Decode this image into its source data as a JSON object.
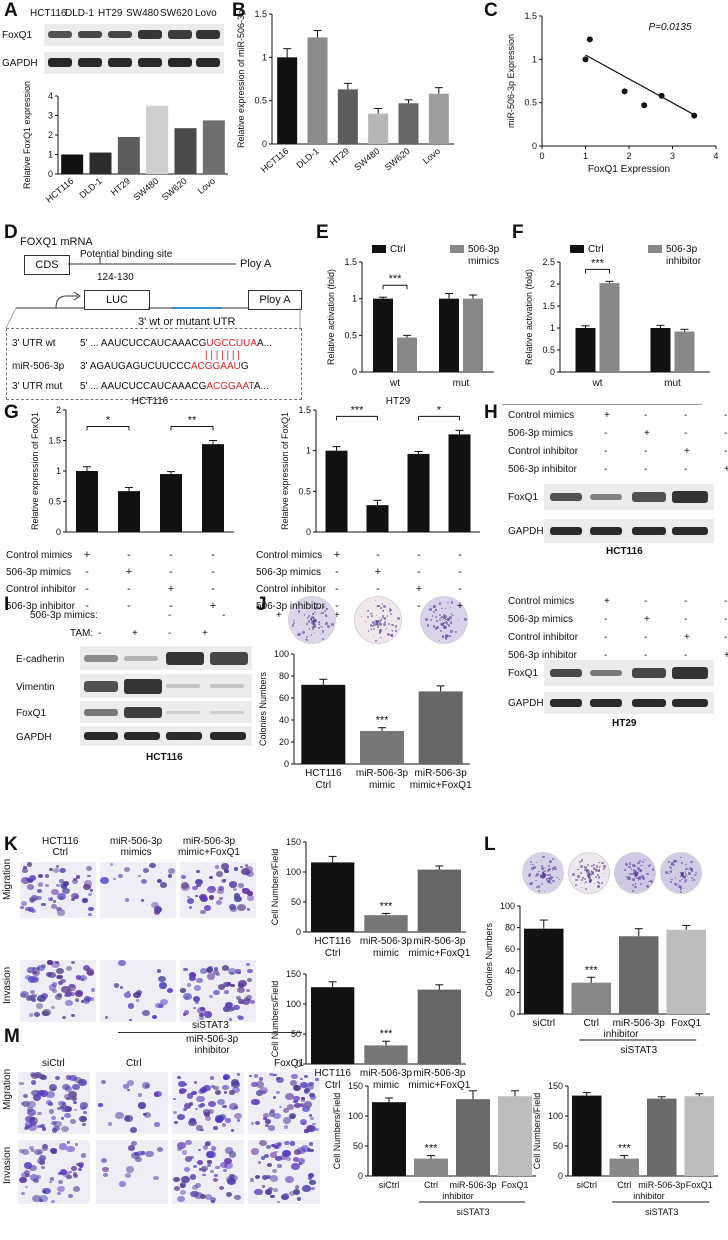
{
  "cell_lines": [
    "HCT116",
    "DLD-1",
    "HT29",
    "SW480",
    "SW620",
    "Lovo"
  ],
  "proteins": {
    "foxq1": "FoxQ1",
    "gapdh": "GAPDH",
    "ecad": "E-cadherin",
    "vim": "Vimentin"
  },
  "panel_letters": [
    "A",
    "B",
    "C",
    "D",
    "E",
    "F",
    "G",
    "H",
    "I",
    "J",
    "K",
    "L",
    "M"
  ],
  "common": {
    "ctrl": "Ctrl",
    "hct116_ctrl_1": "HCT116",
    "hct116_ctrl_2": "Ctrl",
    "mimic_1": "miR-506-3p",
    "mimic_2": "mimic",
    "mimicfox_1": "miR-506-3p",
    "mimicfox_2": "mimic+FoxQ1",
    "sictrl": "siCtrl",
    "inh_1": "miR-506-3p",
    "inh_2": "inhibitor",
    "foxq1": "FoxQ1",
    "sistat3": "siSTAT3",
    "migration": "Migration",
    "invasion": "Invasion",
    "sig3": "***",
    "hct116": "HCT116",
    "ht29": "HT29"
  },
  "treat_labels": [
    "Control mimics",
    "506-3p mimics",
    "Control inhibitor",
    "506-3p inhibitor"
  ],
  "treat_signs": [
    [
      "+",
      "-",
      "-",
      "-"
    ],
    [
      "-",
      "+",
      "-",
      "-"
    ],
    [
      "-",
      "-",
      "+",
      "-"
    ],
    [
      "-",
      "-",
      "-",
      "+"
    ]
  ],
  "panelD": {
    "title": "FOXQ1 mRNA",
    "cds": "CDS",
    "site": "Potential binding site",
    "pos": "124-130",
    "polyA1": "Ploy A",
    "luc": "LUC",
    "polyA2": "Ploy A",
    "utr": "3' wt or mutant UTR",
    "rows": [
      {
        "label": "3' UTR wt",
        "seq_pre": "5' ... AAUCUCCAUCAAACG",
        "seq_red": "UGCCUUA",
        "seq_post": "A..."
      },
      {
        "label": "miR-506-3p",
        "seq_pre": "3'    AGAUGAGUCUUCCC",
        "seq_red": "ACGGAAU",
        "seq_post": "G"
      },
      {
        "label": "3' UTR mut",
        "seq_pre": "5' ... AAUCUCCAUCAAACG",
        "seq_red": "ACGGAAT",
        "seq_post": "A..."
      }
    ],
    "pairs": "| | | | | | |"
  },
  "panelI": {
    "row1": "506-3p mimics:",
    "row2": "TAM:",
    "signs1": [
      "-",
      "-",
      "+",
      "+"
    ],
    "signs2": [
      "-",
      "+",
      "-",
      "+"
    ],
    "cell": "HCT116"
  },
  "panelK": {
    "cols": [
      [
        "HCT116",
        "Ctrl"
      ],
      [
        "miR-506-3p",
        "mimics"
      ],
      [
        "miR-506-3p",
        "mimic+FoxQ1"
      ]
    ]
  },
  "panelM": {
    "cols": [
      "siCtrl",
      "Ctrl",
      "FoxQ1"
    ],
    "inh_1": "miR-506-3p",
    "inh_2": "inhibitor",
    "group": "siSTAT3"
  },
  "chart_data": [
    {
      "id": "A",
      "type": "bar",
      "categories": [
        "HCT116",
        "DLD-1",
        "HT29",
        "SW480",
        "SW620",
        "Lovo"
      ],
      "values": [
        1.0,
        1.1,
        1.9,
        3.5,
        2.35,
        2.75
      ],
      "ylabel": "Relative FoxQ1 expression",
      "ylim": [
        0,
        4
      ],
      "yticks": [
        0,
        1,
        2,
        3,
        4
      ],
      "colors": [
        "#111111",
        "#2c2c2c",
        "#5d5d5d",
        "#cfcfcf",
        "#4a4a4a",
        "#6f6f6f"
      ]
    },
    {
      "id": "B",
      "type": "bar",
      "categories": [
        "HCT116",
        "DLD-1",
        "HT29",
        "SW480",
        "SW620",
        "Lovo"
      ],
      "values": [
        1.0,
        1.23,
        0.63,
        0.35,
        0.47,
        0.58
      ],
      "errors": [
        0.1,
        0.08,
        0.07,
        0.06,
        0.04,
        0.07
      ],
      "ylabel": "Relative expression of miR-506-3p",
      "ylim": [
        0,
        1.5
      ],
      "yticks": [
        0,
        0.5,
        1.0,
        1.5
      ],
      "colors": [
        "#111111",
        "#8b8b8b",
        "#5d5d5d",
        "#b6b6b6",
        "#666666",
        "#9e9e9e"
      ]
    },
    {
      "id": "C",
      "type": "scatter",
      "x": [
        1.0,
        1.1,
        1.9,
        2.35,
        2.75,
        3.5
      ],
      "y": [
        1.0,
        1.23,
        0.63,
        0.47,
        0.58,
        0.35
      ],
      "fit": [
        [
          1.0,
          1.05
        ],
        [
          3.5,
          0.36
        ]
      ],
      "xlabel": "FoxQ1 Expression",
      "ylabel": "miR-506-3p Expression",
      "annotation": "P=0.0135",
      "xlim": [
        0,
        4
      ],
      "ylim": [
        0,
        1.5
      ],
      "xticks": [
        0,
        1,
        2,
        3,
        4
      ],
      "yticks": [
        0,
        0.5,
        1.0,
        1.5
      ]
    },
    {
      "id": "E",
      "type": "bar",
      "categories": [
        "wt",
        "mut"
      ],
      "series": [
        {
          "name": "Ctrl",
          "values": [
            1.0,
            1.0
          ],
          "errors": [
            0.02,
            0.07
          ]
        },
        {
          "name": "506-3p mimics",
          "values": [
            0.47,
            1.0
          ],
          "errors": [
            0.03,
            0.05
          ]
        }
      ],
      "ylabel": "Relative activation (fold)",
      "ylim": [
        0,
        1.5
      ],
      "yticks": [
        0,
        0.5,
        1.0,
        1.5
      ],
      "sig": "***",
      "colors": [
        "#111111",
        "#888888"
      ]
    },
    {
      "id": "F",
      "type": "bar",
      "categories": [
        "wt",
        "mut"
      ],
      "series": [
        {
          "name": "Ctrl",
          "values": [
            1.0,
            1.0
          ],
          "errors": [
            0.05,
            0.06
          ]
        },
        {
          "name": "506-3p inhibitor",
          "values": [
            2.02,
            0.92
          ],
          "errors": [
            0.04,
            0.05
          ]
        }
      ],
      "ylabel": "Relative activation (fold)",
      "ylim": [
        0,
        2.5
      ],
      "yticks": [
        0,
        0.5,
        1.0,
        1.5,
        2.0,
        2.5
      ],
      "sig": "***",
      "colors": [
        "#111111",
        "#888888"
      ]
    },
    {
      "id": "G1",
      "type": "bar",
      "title": "HCT116",
      "values": [
        1.0,
        0.67,
        0.95,
        1.44
      ],
      "errors": [
        0.07,
        0.06,
        0.04,
        0.06
      ],
      "ylabel": "Relative expression of FoxQ1",
      "ylim": [
        0,
        2.0
      ],
      "yticks": [
        0,
        0.5,
        1.0,
        1.5,
        2.0
      ],
      "sigs": [
        "*",
        "**"
      ]
    },
    {
      "id": "G2",
      "type": "bar",
      "title": "HT29",
      "values": [
        1.0,
        0.33,
        0.96,
        1.2
      ],
      "errors": [
        0.05,
        0.06,
        0.03,
        0.05
      ],
      "ylabel": "Relative expression of FoxQ1",
      "ylim": [
        0,
        1.5
      ],
      "yticks": [
        0,
        0.5,
        1.0,
        1.5
      ],
      "sigs": [
        "***",
        "*"
      ]
    },
    {
      "id": "J",
      "type": "bar",
      "categories": [
        "HCT116 Ctrl",
        "miR-506-3p mimic",
        "miR-506-3p mimic+FoxQ1"
      ],
      "values": [
        72,
        30,
        66
      ],
      "errors": [
        5,
        3,
        5
      ],
      "ylabel": "Colonies Numbers",
      "ylim": [
        0,
        100
      ],
      "yticks": [
        0,
        20,
        40,
        60,
        80,
        100
      ],
      "sig": "***"
    },
    {
      "id": "K1",
      "type": "bar",
      "categories": [
        "HCT116 Ctrl",
        "miR-506-3p mimic",
        "miR-506-3p mimic+FoxQ1"
      ],
      "values": [
        116,
        28,
        104
      ],
      "errors": [
        10,
        3,
        6
      ],
      "ylabel": "Cell Numbers/Field",
      "ylim": [
        0,
        150
      ],
      "yticks": [
        0,
        50,
        100,
        150
      ],
      "sig": "***"
    },
    {
      "id": "K2",
      "type": "bar",
      "categories": [
        "HCT116 Ctrl",
        "miR-506-3p mimic",
        "miR-506-3p mimic+FoxQ1"
      ],
      "values": [
        128,
        31,
        124
      ],
      "errors": [
        9,
        7,
        8
      ],
      "ylabel": "Cell Numbers/Field",
      "ylim": [
        0,
        150
      ],
      "yticks": [
        0,
        50,
        100,
        150
      ],
      "sig": "***"
    },
    {
      "id": "L",
      "type": "bar",
      "categories": [
        "siCtrl",
        "Ctrl",
        "miR-506-3p inhibitor",
        "FoxQ1"
      ],
      "values": [
        79,
        29,
        72,
        78
      ],
      "errors": [
        8,
        5,
        7,
        4
      ],
      "ylabel": "Colonies Numbers",
      "ylim": [
        0,
        100
      ],
      "yticks": [
        0,
        20,
        40,
        60,
        80,
        100
      ],
      "sig": "***",
      "group": "siSTAT3"
    },
    {
      "id": "M1",
      "type": "bar",
      "categories": [
        "siCtrl",
        "Ctrl",
        "miR-506-3p inhibitor",
        "FoxQ1"
      ],
      "values": [
        123,
        29,
        128,
        133
      ],
      "errors": [
        7,
        5,
        14,
        9
      ],
      "ylabel": "Cell Numbers/Field",
      "ylim": [
        0,
        150
      ],
      "yticks": [
        0,
        50,
        100,
        150
      ],
      "sig": "***",
      "group": "siSTAT3"
    },
    {
      "id": "M2",
      "type": "bar",
      "categories": [
        "siCtrl",
        "Ctrl",
        "miR-506-3p inhibitor",
        "FoxQ1"
      ],
      "values": [
        134,
        29,
        129,
        133
      ],
      "errors": [
        5,
        5,
        3,
        4
      ],
      "ylabel": "Cell Numbers/Field",
      "ylim": [
        0,
        150
      ],
      "yticks": [
        0,
        50,
        100,
        150
      ],
      "sig": "***",
      "group": "siSTAT3"
    }
  ]
}
